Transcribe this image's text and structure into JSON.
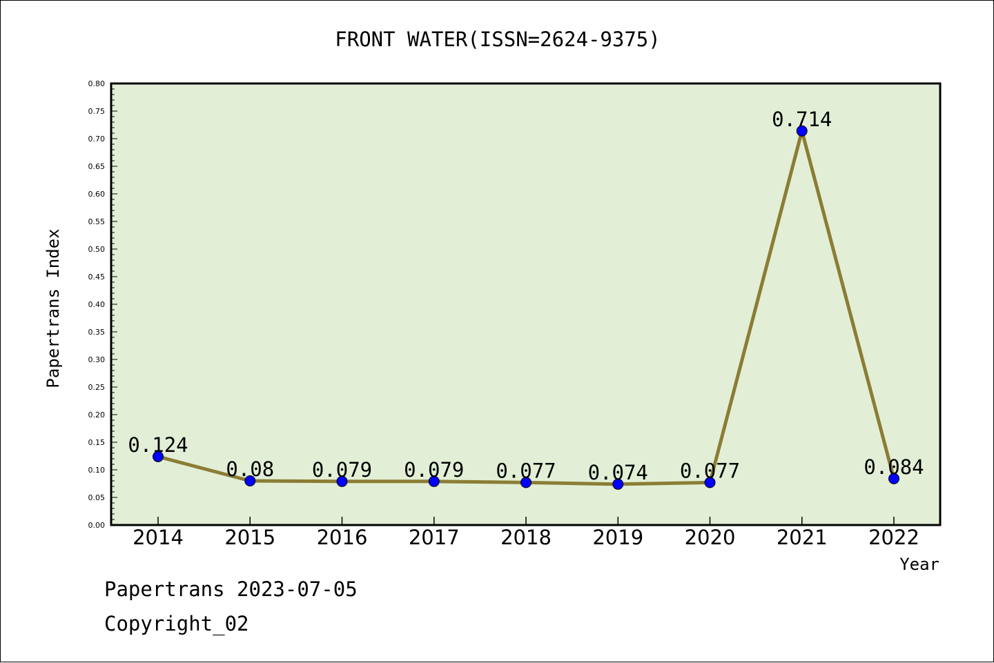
{
  "chart_data": {
    "type": "line",
    "title": "FRONT WATER(ISSN=2624-9375)",
    "xlabel": "Year",
    "ylabel": "Papertrans Index",
    "categories": [
      "2014",
      "2015",
      "2016",
      "2017",
      "2018",
      "2019",
      "2020",
      "2021",
      "2022"
    ],
    "values": [
      0.124,
      0.08,
      0.079,
      0.079,
      0.077,
      0.074,
      0.077,
      0.714,
      0.084
    ],
    "data_labels": [
      "0.124",
      "0.08",
      "0.079",
      "0.079",
      "0.077",
      "0.074",
      "0.077",
      "0.714",
      "0.084"
    ],
    "ylim": [
      0,
      0.8
    ],
    "yticks": [
      "0.00",
      "0.05",
      "0.10",
      "0.15",
      "0.20",
      "0.25",
      "0.30",
      "0.35",
      "0.40",
      "0.45",
      "0.50",
      "0.55",
      "0.60",
      "0.65",
      "0.70",
      "0.75",
      "0.80"
    ],
    "grid": false,
    "colors": {
      "plot_background": "#e2efd6",
      "line": "#8b7d35",
      "marker": "#0000ff"
    }
  },
  "footer": {
    "line1": "Papertrans 2023-07-05",
    "line2": "Copyright_02"
  }
}
